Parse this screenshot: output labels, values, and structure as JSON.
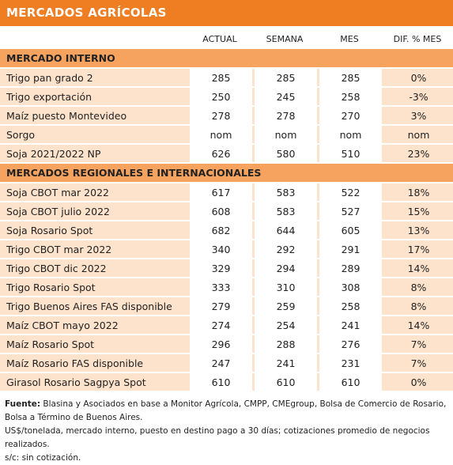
{
  "header": {
    "title": "MERCADOS AGRÍCOLAS"
  },
  "table": {
    "columns": [
      "ACTUAL",
      "SEMANA",
      "MES",
      "DIF. % MES"
    ],
    "sections": [
      {
        "title": "MERCADO INTERNO",
        "rows": [
          [
            "Trigo pan grado 2",
            "285",
            "285",
            "285",
            "0%"
          ],
          [
            "Trigo exportación",
            "250",
            "245",
            "258",
            "-3%"
          ],
          [
            "Maíz puesto Montevideo",
            "278",
            "278",
            "270",
            "3%"
          ],
          [
            "Sorgo",
            "nom",
            "nom",
            "nom",
            "nom"
          ],
          [
            "Soja 2021/2022 NP",
            "626",
            "580",
            "510",
            "23%"
          ]
        ]
      },
      {
        "title": "MERCADOS REGIONALES E INTERNACIONALES",
        "rows": [
          [
            "Soja CBOT mar 2022",
            "617",
            "583",
            "522",
            "18%"
          ],
          [
            "Soja CBOT julio 2022",
            "608",
            "583",
            "527",
            "15%"
          ],
          [
            "Soja Rosario Spot",
            "682",
            "644",
            "605",
            "13%"
          ],
          [
            "Trigo CBOT mar 2022",
            "340",
            "292",
            "291",
            "17%"
          ],
          [
            "Trigo CBOT dic 2022",
            "329",
            "294",
            "289",
            "14%"
          ],
          [
            "Trigo Rosario Spot",
            "333",
            "310",
            "308",
            "8%"
          ],
          [
            "Trigo Buenos Aires FAS disponible",
            "279",
            "259",
            "258",
            "8%"
          ],
          [
            "Maíz CBOT mayo 2022",
            "274",
            "254",
            "241",
            "14%"
          ],
          [
            "Maíz Rosario Spot",
            "296",
            "288",
            "276",
            "7%"
          ],
          [
            "Maíz Rosario FAS disponible",
            "247",
            "241",
            "231",
            "7%"
          ],
          [
            "Girasol Rosario Sagpya Spot",
            "610",
            "610",
            "610",
            "0%"
          ]
        ]
      }
    ]
  },
  "footer": {
    "source_label": "Fuente:",
    "source_text": "Blasina y Asociados en base a Monitor Agrícola, CMPP, CMEgroup, Bolsa de Comercio de Rosario, Bolsa a Término de Buenos Aires.",
    "note": "US$/tonelada, mercado interno, puesto en destino pago a 30 días; cotizaciones promedio de negocios realizados.",
    "legend": "s/c: sin cotización."
  }
}
